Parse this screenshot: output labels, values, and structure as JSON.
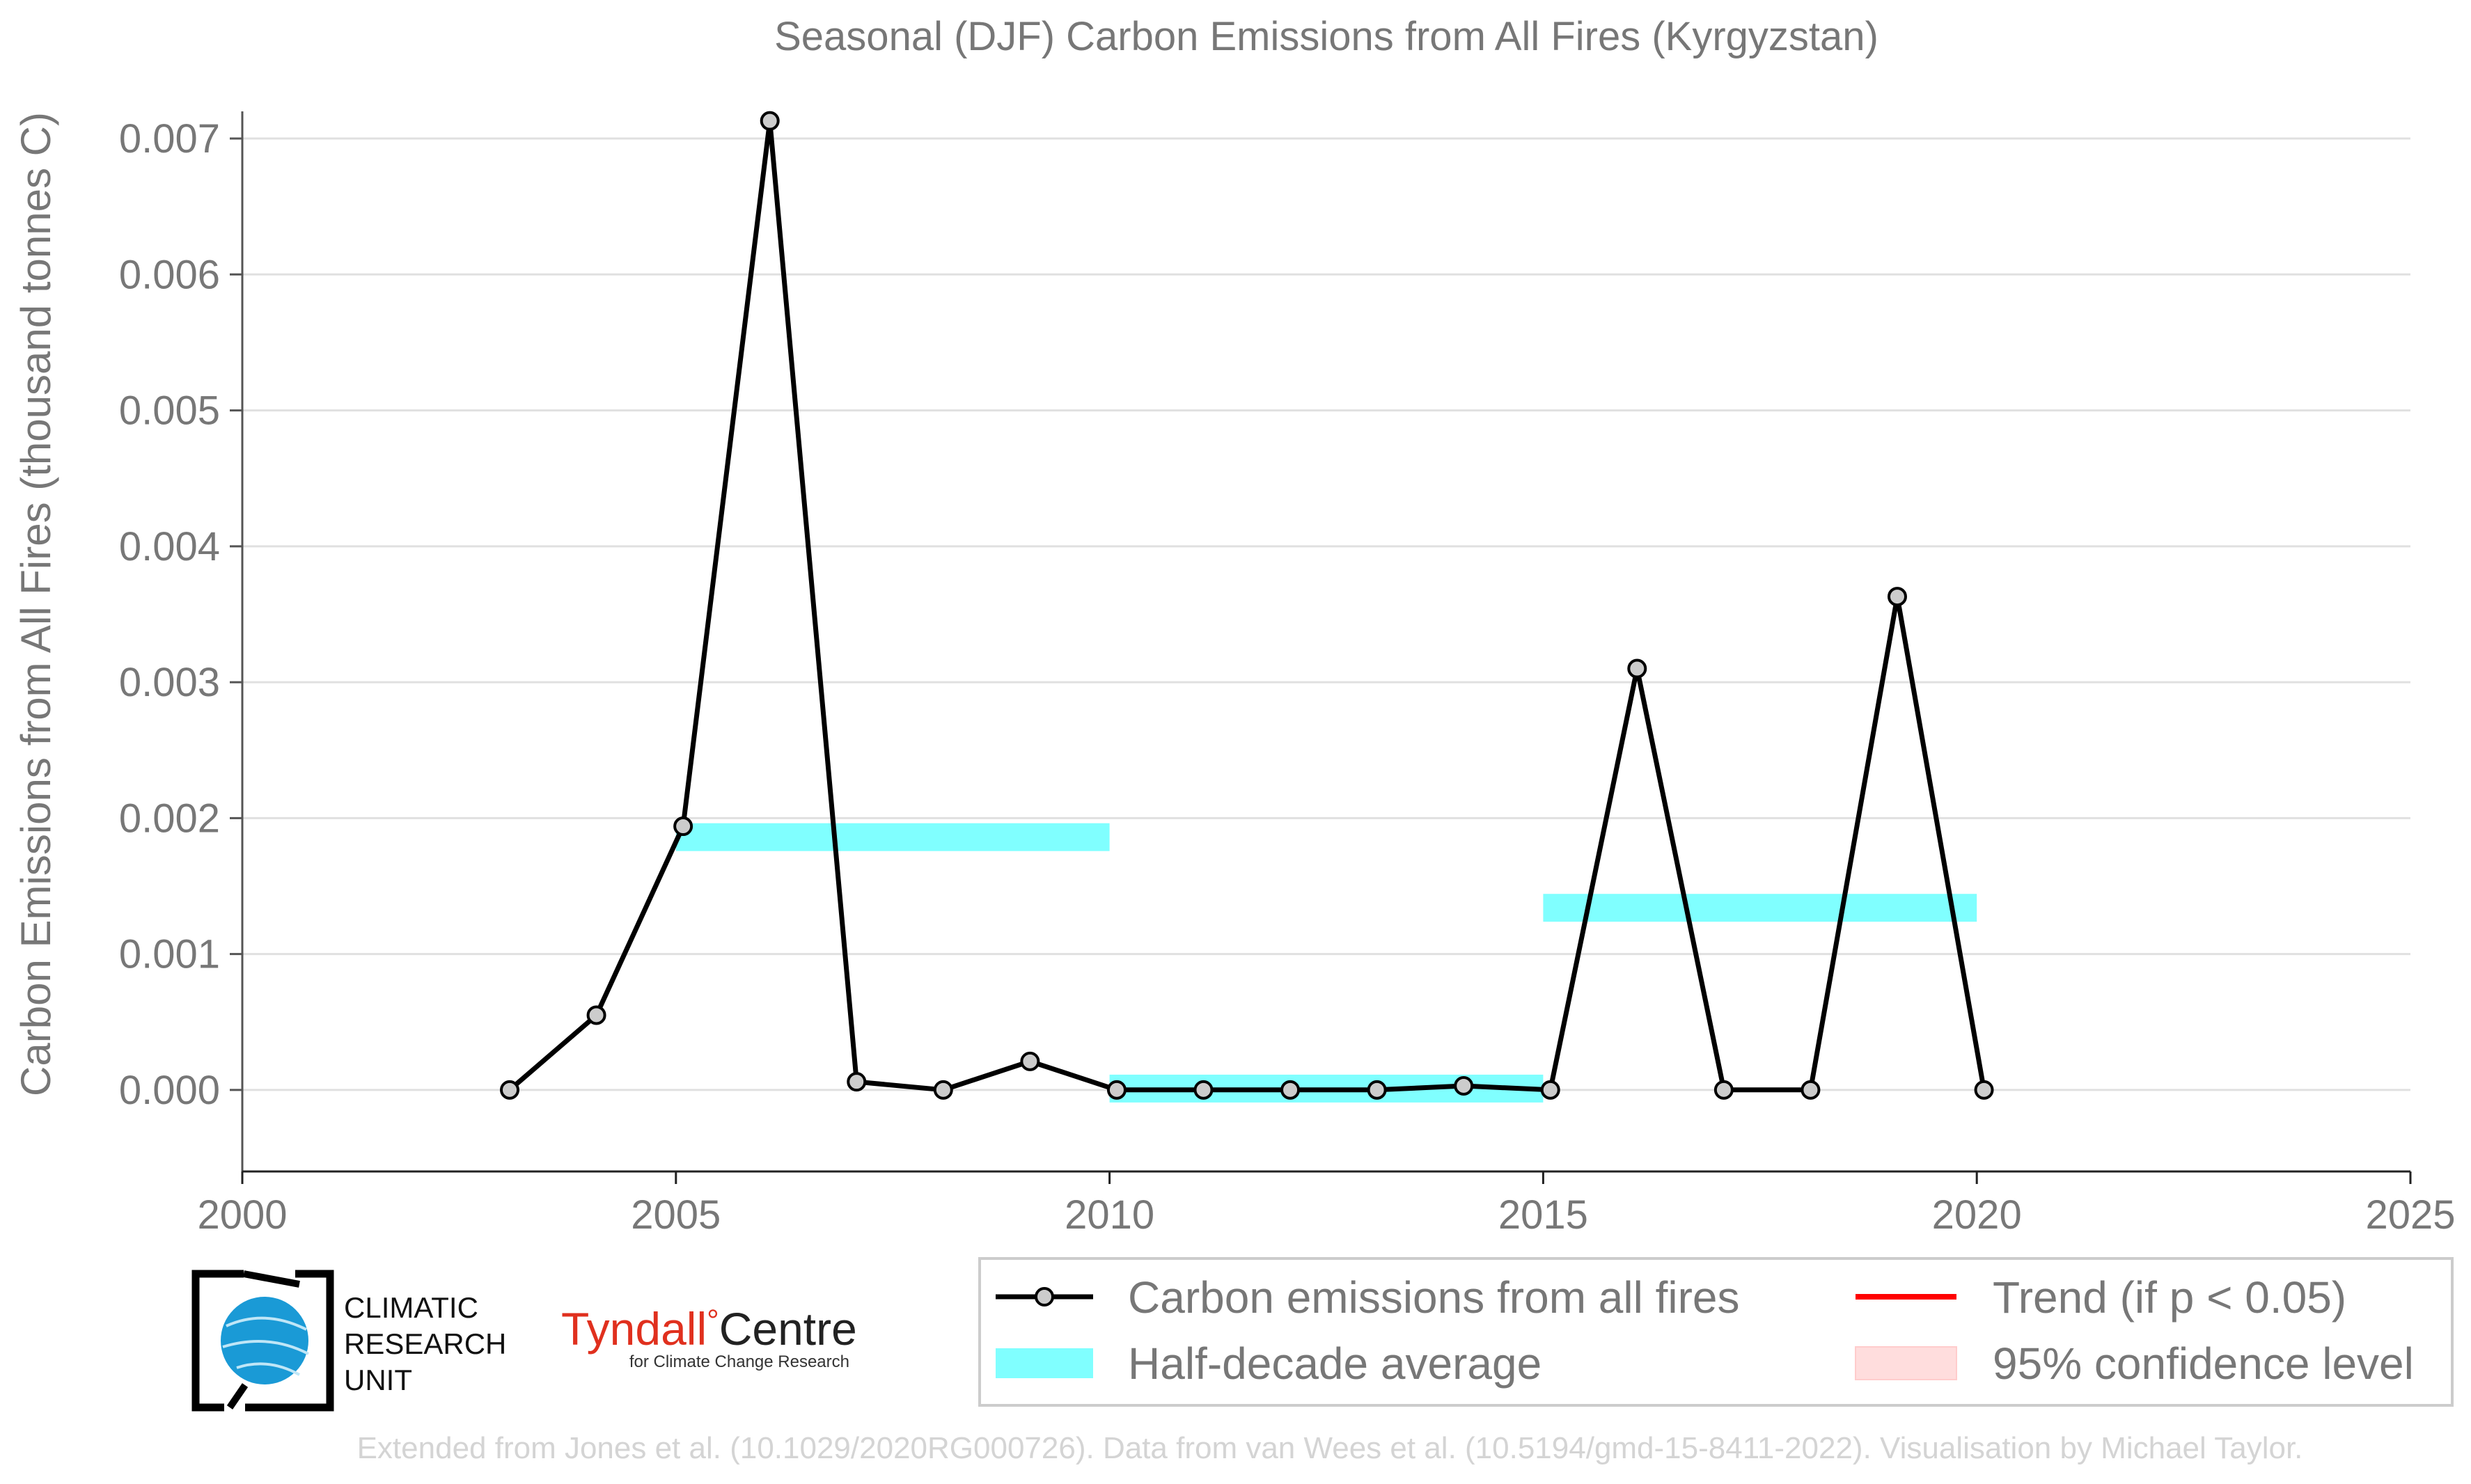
{
  "chart_data": {
    "type": "line",
    "title": "Seasonal (DJF) Carbon Emissions from All Fires (Kyrgyzstan)",
    "ylabel": "Carbon Emissions from All Fires (thousand tonnes C)",
    "xlabel": "",
    "xlim": [
      2000,
      2025
    ],
    "ylim": [
      -0.0006,
      0.0072
    ],
    "xticks": [
      2000,
      2005,
      2010,
      2015,
      2020,
      2025
    ],
    "yticks": [
      0.0,
      0.001,
      0.002,
      0.003,
      0.004,
      0.005,
      0.006,
      0.007
    ],
    "ytick_labels": [
      "0.000",
      "0.001",
      "0.002",
      "0.003",
      "0.004",
      "0.005",
      "0.006",
      "0.007"
    ],
    "grid": "horizontal",
    "series": [
      {
        "name": "Carbon emissions from all fires",
        "color": "#000000",
        "marker_fill": "#cccccc",
        "x": [
          2003.083,
          2004.083,
          2005.083,
          2006.083,
          2007.083,
          2008.083,
          2009.083,
          2010.083,
          2011.083,
          2012.083,
          2013.083,
          2014.083,
          2015.083,
          2016.083,
          2017.083,
          2018.083,
          2019.083,
          2020.083
        ],
        "y": [
          0.0,
          0.00055,
          0.00194,
          0.00713,
          6e-05,
          0.0,
          0.00021,
          0.0,
          0.0,
          0.0,
          0.0,
          3e-05,
          0.0,
          0.0031,
          0.0,
          0.0,
          0.00363,
          0.0
        ]
      }
    ],
    "half_decade_average": {
      "name": "Half-decade average",
      "color": "#80ffff",
      "segments": [
        {
          "x0": 2005,
          "x1": 2010,
          "y": 0.00186
        },
        {
          "x0": 2010,
          "x1": 2015,
          "y": 1e-05
        },
        {
          "x0": 2015,
          "x1": 2020,
          "y": 0.00134
        }
      ]
    },
    "legend": {
      "placement": "bottom-right",
      "entries": [
        {
          "label": "Carbon emissions from all fires",
          "kind": "line-marker",
          "color": "#000000"
        },
        {
          "label": "Trend (if p < 0.05)",
          "kind": "line",
          "color": "#ff0000"
        },
        {
          "label": "Half-decade average",
          "kind": "band",
          "color": "#80ffff"
        },
        {
          "label": "95% confidence level",
          "kind": "band",
          "color": "#ffdddd"
        }
      ]
    }
  },
  "logos": {
    "cru_lines": [
      "CLIMATIC",
      "RESEARCH",
      "UNIT"
    ],
    "tyndall_name": "Tyndall",
    "tyndall_degree": "°",
    "tyndall_centre": "Centre",
    "tyndall_sub": "for Climate Change Research"
  },
  "footer": "Extended from Jones et al. (10.1029/2020RG000726). Data from van Wees et al. (10.5194/gmd-15-8411-2022). Visualisation by Michael Taylor."
}
